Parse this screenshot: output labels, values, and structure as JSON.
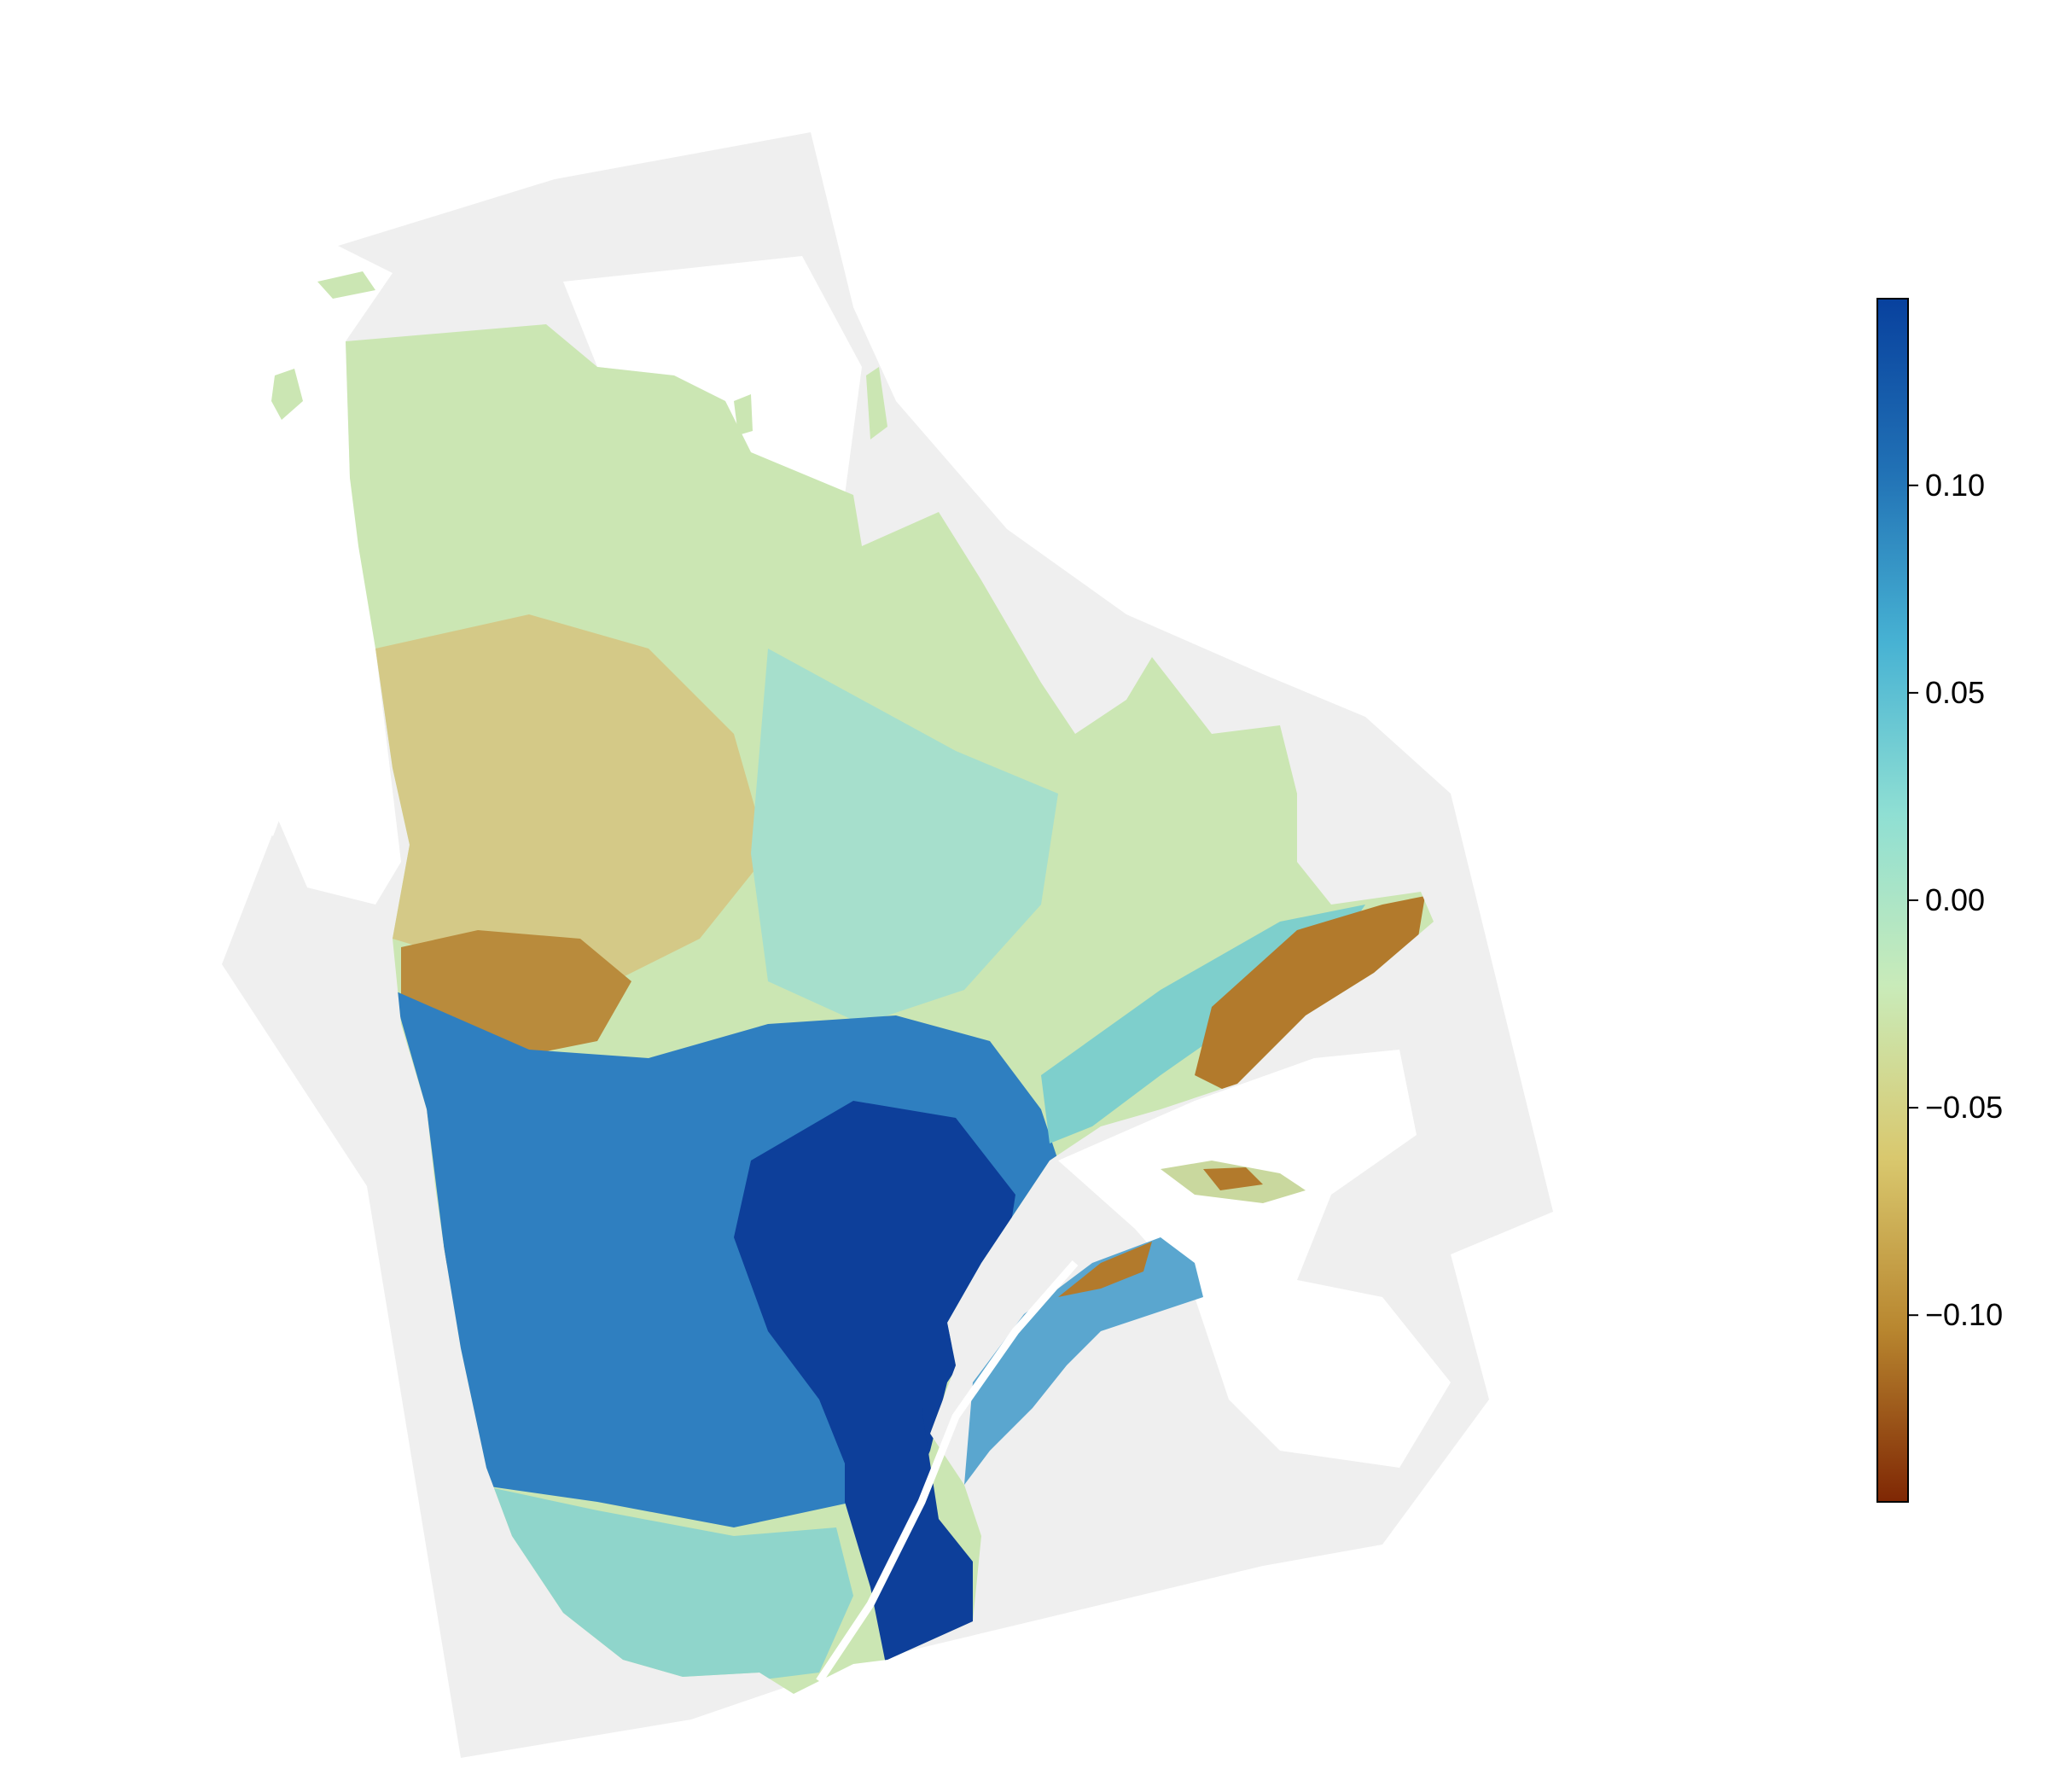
{
  "figure": {
    "background_color": "#ffffff",
    "outside_area_color": "#efefef",
    "water_color": "#ffffff"
  },
  "colorbar": {
    "ticks": [
      {
        "value": 0.1,
        "label": "0.10"
      },
      {
        "value": 0.05,
        "label": "0.05"
      },
      {
        "value": 0.0,
        "label": "0.00"
      },
      {
        "value": -0.05,
        "label": "−0.05"
      },
      {
        "value": -0.1,
        "label": "−0.10"
      }
    ],
    "range": [
      -0.145,
      0.145
    ],
    "colormap": [
      "#7f2704",
      "#b8862f",
      "#d9c86e",
      "#c9ebb9",
      "#8fdfd3",
      "#47b2d3",
      "#2171b5",
      "#08419e"
    ],
    "orientation": "vertical",
    "placement": "right"
  },
  "map": {
    "region_colors": {
      "north_plateau": "#cbe6b3",
      "central_tan": "#d4c987",
      "brown_patch": "#b98b3c",
      "central_teal": "#a6dfcc",
      "blue_band": "#2f7fc0",
      "deep_blue": "#0d3f9a",
      "south_teal": "#8fd5cb",
      "north_shore_brown": "#b27a2c",
      "gaspe_mixed": "#5aa6cf"
    }
  }
}
